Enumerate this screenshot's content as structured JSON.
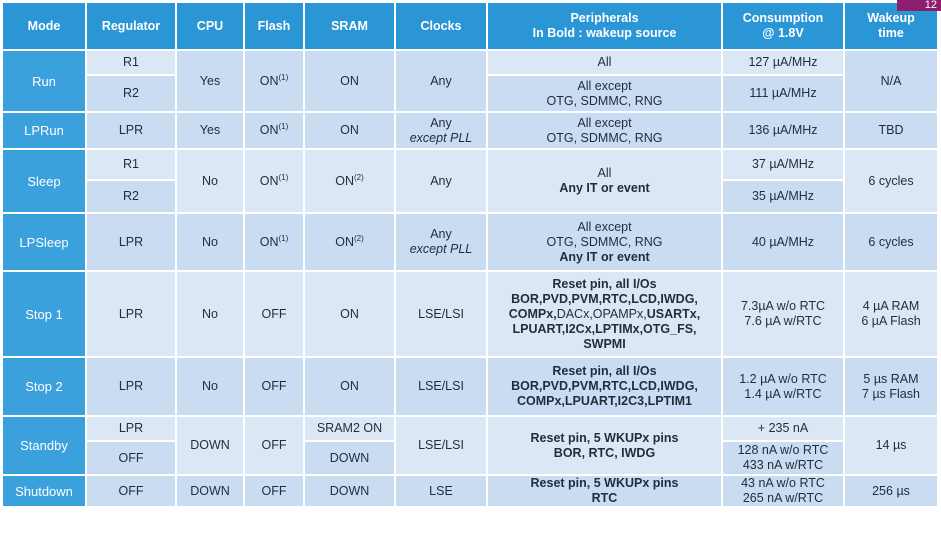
{
  "page_number": "12",
  "headers": {
    "mode": "Mode",
    "regulator": "Regulator",
    "cpu": "CPU",
    "flash": "Flash",
    "sram": "SRAM",
    "clocks": "Clocks",
    "peripherals_line1": "Peripherals",
    "peripherals_line2": "In Bold : wakeup source",
    "consumption_line1": "Consumption",
    "consumption_line2": "@ 1.8V",
    "wakeup_line1": "Wakeup",
    "wakeup_line2": "time"
  },
  "footnote_1": "(1)",
  "footnote_2": "(2)",
  "rows": {
    "run": {
      "mode": "Run",
      "regulator_a": "R1",
      "regulator_b": "R2",
      "cpu": "Yes",
      "flash": "ON",
      "sram": "ON",
      "clocks": "Any",
      "peripherals_a": "All",
      "peripherals_b1": "All except",
      "peripherals_b2": "OTG, SDMMC, RNG",
      "consumption_a": "127 µA/MHz",
      "consumption_b": "111 µA/MHz",
      "wakeup": "N/A"
    },
    "lprun": {
      "mode": "LPRun",
      "regulator": "LPR",
      "cpu": "Yes",
      "flash": "ON",
      "sram": "ON",
      "clocks1": "Any",
      "clocks2": "except PLL",
      "peripherals1": "All except",
      "peripherals2": "OTG, SDMMC, RNG",
      "consumption": "136 µA/MHz",
      "wakeup": "TBD"
    },
    "sleep": {
      "mode": "Sleep",
      "regulator_a": "R1",
      "regulator_b": "R2",
      "cpu": "No",
      "flash": "ON",
      "sram": "ON",
      "clocks": "Any",
      "peripherals1": "All",
      "peripherals2": "Any IT or event",
      "consumption_a": "37 µA/MHz",
      "consumption_b": "35 µA/MHz",
      "wakeup": "6 cycles"
    },
    "lpsleep": {
      "mode": "LPSleep",
      "regulator": "LPR",
      "cpu": "No",
      "flash": "ON",
      "sram": "ON",
      "clocks1": "Any",
      "clocks2": "except PLL",
      "peripherals1": "All except",
      "peripherals2": "OTG, SDMMC, RNG",
      "peripherals3": "Any IT or event",
      "consumption": "40 µA/MHz",
      "wakeup": "6 cycles"
    },
    "stop1": {
      "mode": "Stop 1",
      "regulator": "LPR",
      "cpu": "No",
      "flash": "OFF",
      "sram": "ON",
      "clocks": "LSE/LSI",
      "p_l1": "Reset pin, all I/Os",
      "p_l2": "BOR,PVD,PVM,RTC,LCD,IWDG,",
      "p_l3_a": "COMPx,",
      "p_l3_b": "DACx,OPAMPx,",
      "p_l3_c": "USARTx,",
      "p_l4": "LPUART,I2Cx,LPTIMx,OTG_FS,",
      "p_l5": "SWPMI",
      "consumption1": "7.3µA w/o RTC",
      "consumption2": "7.6 µA w/RTC",
      "wakeup1": "4 µA RAM",
      "wakeup2": "6 µA Flash"
    },
    "stop2": {
      "mode": "Stop 2",
      "regulator": "LPR",
      "cpu": "No",
      "flash": "OFF",
      "sram": "ON",
      "clocks": "LSE/LSI",
      "p_l1": "Reset pin, all I/Os",
      "p_l2": "BOR,PVD,PVM,RTC,LCD,IWDG,",
      "p_l3": "COMPx,LPUART,I2C3,LPTIM1",
      "consumption1": "1.2 µA w/o RTC",
      "consumption2": "1.4 µA w/RTC",
      "wakeup1": "5 µs RAM",
      "wakeup2": "7 µs Flash"
    },
    "standby": {
      "mode": "Standby",
      "regulator_a": "LPR",
      "regulator_b": "OFF",
      "cpu": "DOWN",
      "flash": "OFF",
      "sram_a": "SRAM2 ON",
      "sram_b": "DOWN",
      "clocks": "LSE/LSI",
      "p_l1": "Reset pin, 5 WKUPx pins",
      "p_l2": "BOR, RTC, IWDG",
      "consumption_a": "+ 235 nA",
      "consumption_b1": "128 nA w/o RTC",
      "consumption_b2": "433 nA w/RTC",
      "wakeup": "14 µs"
    },
    "shutdown": {
      "mode": "Shutdown",
      "regulator": "OFF",
      "cpu": "DOWN",
      "flash": "OFF",
      "sram": "DOWN",
      "clocks": "LSE",
      "p_l1": "Reset pin, 5 WKUPx pins",
      "p_l2": "RTC",
      "consumption1": "43 nA w/o RTC",
      "consumption2": "265 nA w/RTC",
      "wakeup": "256 µs"
    }
  }
}
